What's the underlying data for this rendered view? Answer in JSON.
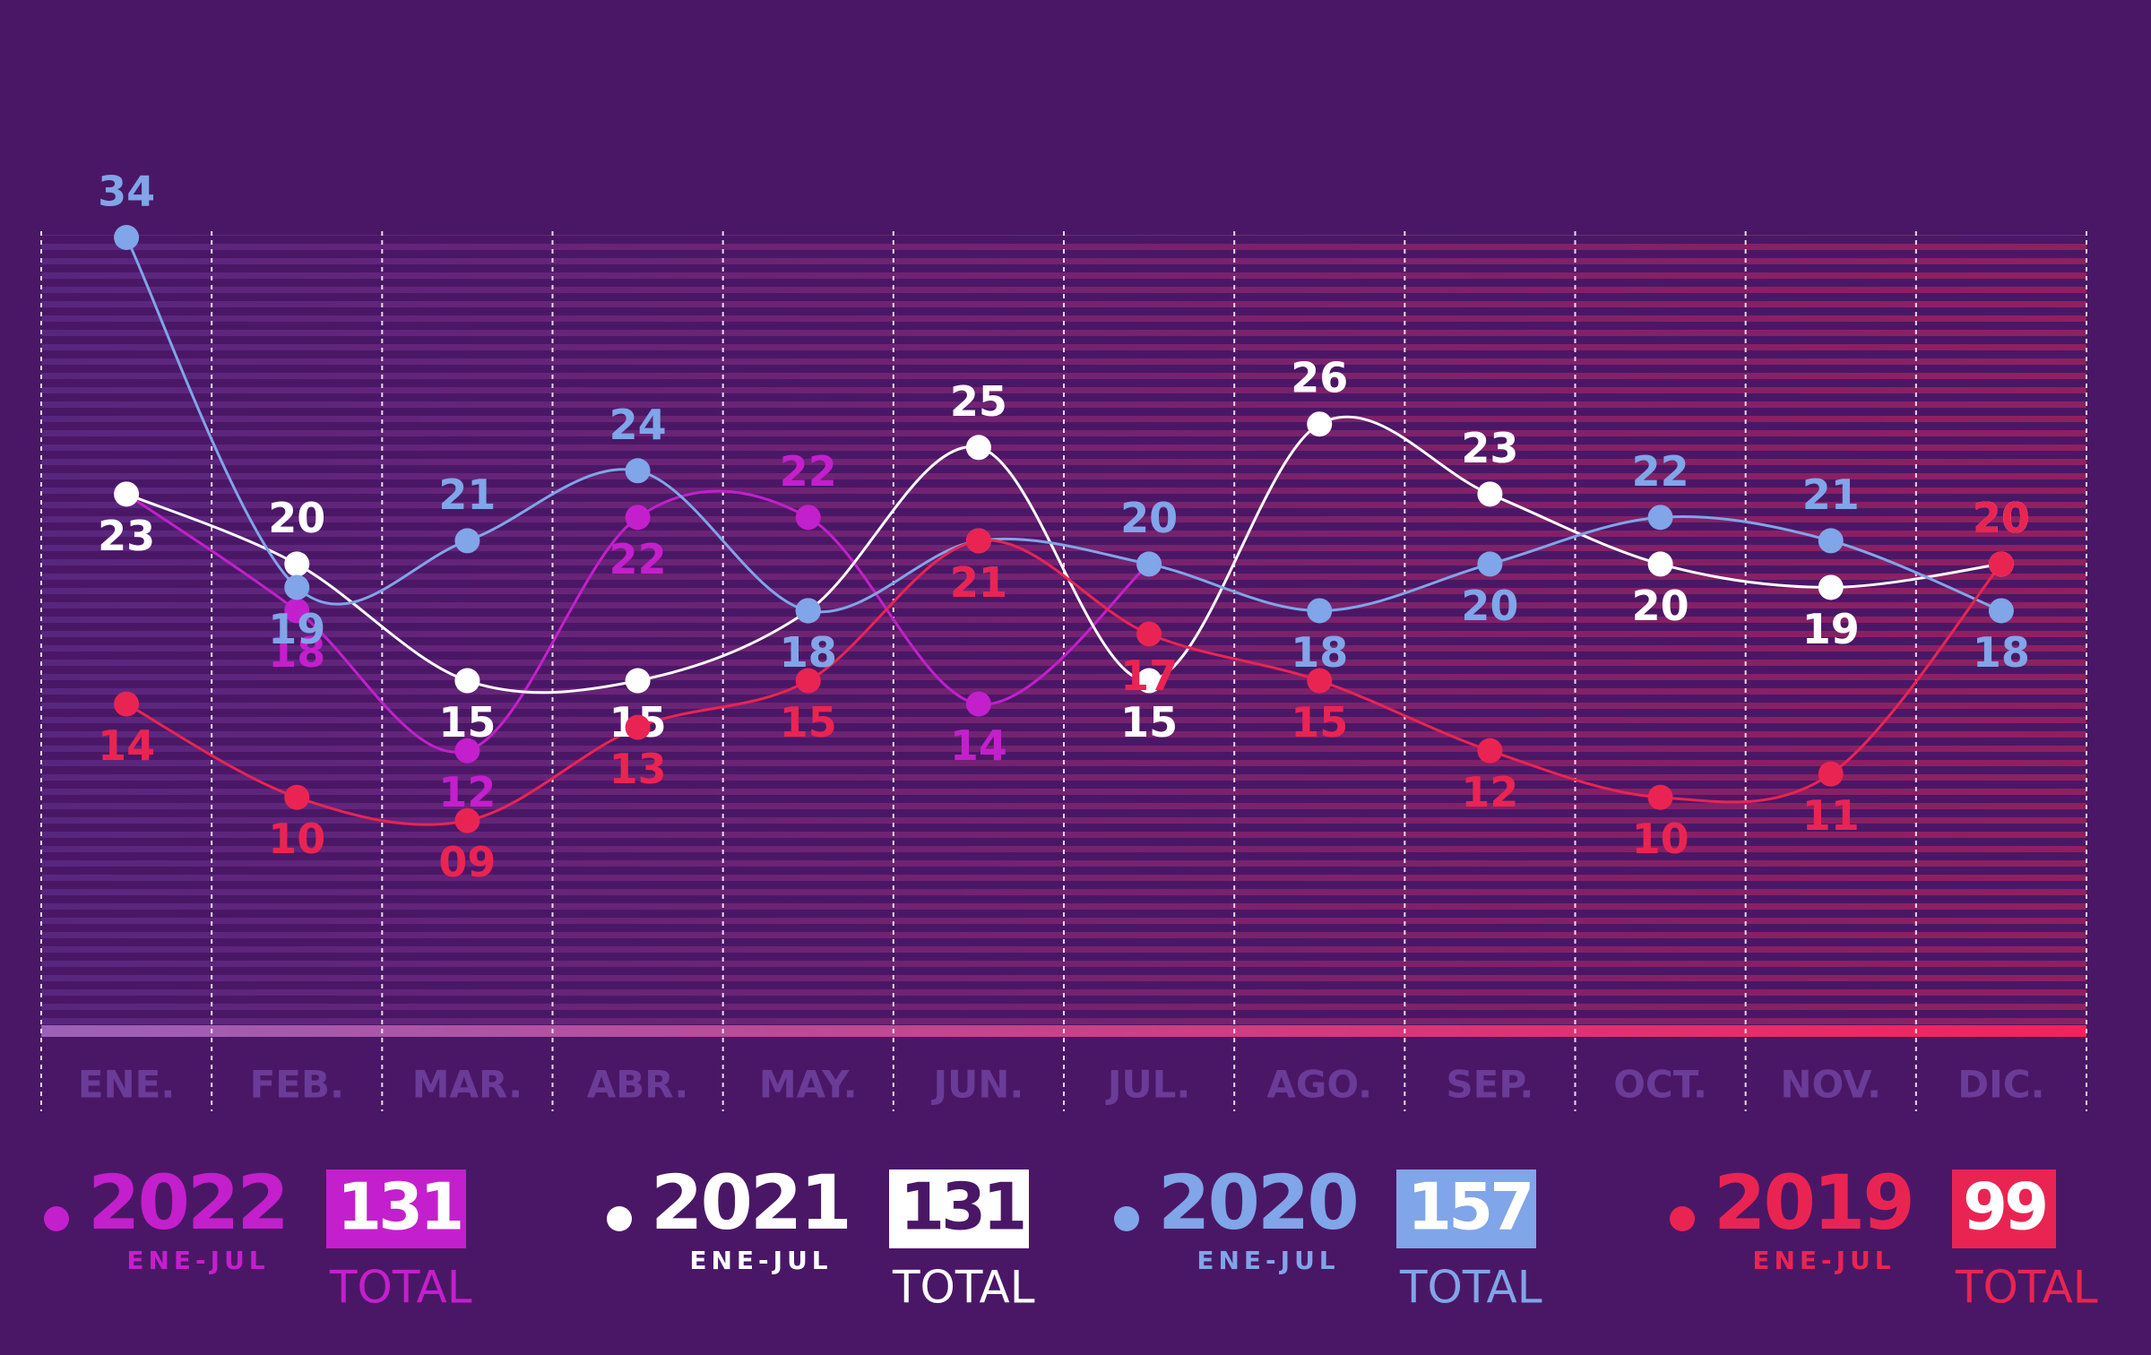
{
  "chart_data": {
    "type": "line",
    "categories": [
      "ENE.",
      "FEB.",
      "MAR.",
      "ABR.",
      "MAY.",
      "JUN.",
      "JUL.",
      "AGO.",
      "SEP.",
      "OCT.",
      "NOV.",
      "DIC."
    ],
    "ylim": [
      0,
      34
    ],
    "grid": true,
    "period": "ENE-JUL",
    "total_label": "TOTAL",
    "series": [
      {
        "name": "2022",
        "color": "#c41fcc",
        "total": 131,
        "values": [
          23,
          18,
          12,
          22,
          22,
          14,
          20,
          null,
          null,
          null,
          null,
          null
        ]
      },
      {
        "name": "2021",
        "color": "#ffffff",
        "total": 131,
        "values": [
          23,
          20,
          15,
          15,
          18,
          25,
          15,
          26,
          23,
          20,
          19,
          20
        ]
      },
      {
        "name": "2020",
        "color": "#80a5e8",
        "total": 157,
        "values": [
          34,
          19,
          21,
          24,
          18,
          21,
          20,
          18,
          20,
          22,
          21,
          18
        ]
      },
      {
        "name": "2019",
        "color": "#ea2452",
        "total": 99,
        "values": [
          14,
          10,
          9,
          13,
          15,
          21,
          17,
          15,
          12,
          10,
          11,
          20
        ],
        "value_labels": [
          "14",
          "10",
          "09",
          "13",
          "15",
          "21",
          "17",
          "15",
          "12",
          "10",
          "11",
          "20"
        ]
      }
    ]
  }
}
